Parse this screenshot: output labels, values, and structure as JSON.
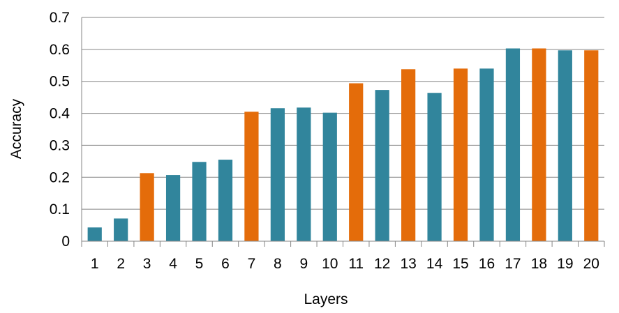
{
  "chart_data": {
    "type": "bar",
    "xlabel": "Layers",
    "ylabel": "Accuracy",
    "ylim": [
      0,
      0.7
    ],
    "yticks": [
      "0",
      "0.1",
      "0.2",
      "0.3",
      "0.4",
      "0.5",
      "0.6",
      "0.7"
    ],
    "grid": true,
    "legend": "none",
    "categories": [
      "1",
      "2",
      "3",
      "4",
      "5",
      "6",
      "7",
      "8",
      "9",
      "10",
      "11",
      "12",
      "13",
      "14",
      "15",
      "16",
      "17",
      "18",
      "19",
      "20"
    ],
    "values": [
      0.043,
      0.071,
      0.213,
      0.207,
      0.248,
      0.255,
      0.405,
      0.416,
      0.418,
      0.402,
      0.494,
      0.473,
      0.538,
      0.464,
      0.54,
      0.54,
      0.603,
      0.603,
      0.597,
      0.597
    ],
    "bar_colors": [
      "#31859C",
      "#31859C",
      "#E46C0A",
      "#31859C",
      "#31859C",
      "#31859C",
      "#E46C0A",
      "#31859C",
      "#31859C",
      "#31859C",
      "#E46C0A",
      "#31859C",
      "#E46C0A",
      "#31859C",
      "#E46C0A",
      "#31859C",
      "#31859C",
      "#E46C0A",
      "#31859C",
      "#E46C0A"
    ],
    "gridline_color": "#868686"
  }
}
